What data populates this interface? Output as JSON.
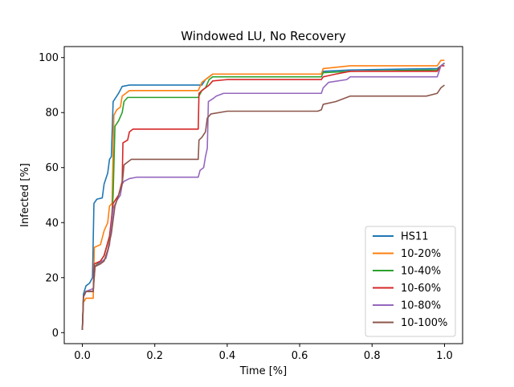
{
  "chart_data": {
    "type": "line",
    "title": "Windowed LU, No Recovery",
    "xlabel": "Time [%]",
    "ylabel": "Infected [%]",
    "xlim": [
      -0.05,
      1.05
    ],
    "ylim": [
      -4,
      104
    ],
    "xticks": [
      0.0,
      0.2,
      0.4,
      0.6,
      0.8,
      1.0
    ],
    "xtick_labels": [
      "0.0",
      "0.2",
      "0.4",
      "0.6",
      "0.8",
      "1.0"
    ],
    "yticks": [
      0,
      20,
      40,
      60,
      80,
      100
    ],
    "ytick_labels": [
      "0",
      "20",
      "40",
      "60",
      "80",
      "100"
    ],
    "grid": false,
    "legend_position": "bottom-right",
    "series": [
      {
        "name": "HS11",
        "color": "#1f77b4",
        "points": [
          [
            0.0,
            1
          ],
          [
            0.003,
            14
          ],
          [
            0.01,
            17
          ],
          [
            0.02,
            18
          ],
          [
            0.028,
            20
          ],
          [
            0.032,
            47
          ],
          [
            0.04,
            48.5
          ],
          [
            0.055,
            49
          ],
          [
            0.06,
            54
          ],
          [
            0.07,
            58
          ],
          [
            0.075,
            63
          ],
          [
            0.08,
            64
          ],
          [
            0.085,
            84
          ],
          [
            0.095,
            86
          ],
          [
            0.1,
            87
          ],
          [
            0.11,
            89.5
          ],
          [
            0.13,
            90
          ],
          [
            0.33,
            90
          ],
          [
            0.34,
            92
          ],
          [
            0.35,
            93
          ],
          [
            0.36,
            94
          ],
          [
            0.66,
            94
          ],
          [
            0.665,
            95
          ],
          [
            0.74,
            95.5
          ],
          [
            0.98,
            96
          ],
          [
            0.99,
            97
          ],
          [
            1.0,
            98
          ]
        ]
      },
      {
        "name": "10-20%",
        "color": "#ff7f0e",
        "points": [
          [
            0.0,
            1
          ],
          [
            0.003,
            11
          ],
          [
            0.01,
            12.5
          ],
          [
            0.03,
            12.5
          ],
          [
            0.033,
            31
          ],
          [
            0.05,
            32
          ],
          [
            0.06,
            37
          ],
          [
            0.07,
            40
          ],
          [
            0.075,
            46
          ],
          [
            0.082,
            47
          ],
          [
            0.087,
            79
          ],
          [
            0.095,
            81
          ],
          [
            0.105,
            82
          ],
          [
            0.11,
            86
          ],
          [
            0.12,
            87
          ],
          [
            0.13,
            88
          ],
          [
            0.32,
            88
          ],
          [
            0.33,
            91
          ],
          [
            0.35,
            93
          ],
          [
            0.36,
            94
          ],
          [
            0.66,
            94
          ],
          [
            0.665,
            96
          ],
          [
            0.74,
            97
          ],
          [
            0.98,
            97
          ],
          [
            0.99,
            99
          ],
          [
            1.0,
            99
          ]
        ]
      },
      {
        "name": "10-40%",
        "color": "#2ca02c",
        "points": [
          [
            0.0,
            1
          ],
          [
            0.003,
            13
          ],
          [
            0.01,
            15
          ],
          [
            0.03,
            15
          ],
          [
            0.033,
            24
          ],
          [
            0.05,
            26
          ],
          [
            0.06,
            28
          ],
          [
            0.075,
            35
          ],
          [
            0.08,
            40
          ],
          [
            0.085,
            50
          ],
          [
            0.09,
            75
          ],
          [
            0.1,
            77
          ],
          [
            0.11,
            80
          ],
          [
            0.115,
            84
          ],
          [
            0.125,
            85.5
          ],
          [
            0.32,
            85.5
          ],
          [
            0.33,
            88
          ],
          [
            0.34,
            89
          ],
          [
            0.35,
            92
          ],
          [
            0.36,
            93
          ],
          [
            0.66,
            93
          ],
          [
            0.665,
            94.5
          ],
          [
            0.74,
            95
          ],
          [
            0.98,
            95.5
          ],
          [
            0.99,
            97
          ],
          [
            1.0,
            98
          ]
        ]
      },
      {
        "name": "10-60%",
        "color": "#d62728",
        "points": [
          [
            0.0,
            1
          ],
          [
            0.003,
            13
          ],
          [
            0.01,
            15
          ],
          [
            0.03,
            15
          ],
          [
            0.033,
            25
          ],
          [
            0.05,
            26
          ],
          [
            0.06,
            28
          ],
          [
            0.075,
            35
          ],
          [
            0.085,
            47
          ],
          [
            0.1,
            50
          ],
          [
            0.11,
            55
          ],
          [
            0.112,
            69
          ],
          [
            0.125,
            70
          ],
          [
            0.13,
            73
          ],
          [
            0.14,
            74
          ],
          [
            0.32,
            74
          ],
          [
            0.322,
            87
          ],
          [
            0.33,
            88
          ],
          [
            0.34,
            89
          ],
          [
            0.35,
            90
          ],
          [
            0.36,
            91.5
          ],
          [
            0.4,
            92
          ],
          [
            0.66,
            92
          ],
          [
            0.665,
            93
          ],
          [
            0.7,
            94
          ],
          [
            0.74,
            95
          ],
          [
            0.98,
            95
          ],
          [
            0.99,
            97
          ],
          [
            1.0,
            97
          ]
        ]
      },
      {
        "name": "10-80%",
        "color": "#9467bd",
        "points": [
          [
            0.0,
            1
          ],
          [
            0.003,
            13
          ],
          [
            0.01,
            15
          ],
          [
            0.03,
            16
          ],
          [
            0.035,
            24
          ],
          [
            0.05,
            25.5
          ],
          [
            0.065,
            27
          ],
          [
            0.075,
            32
          ],
          [
            0.085,
            45
          ],
          [
            0.095,
            48
          ],
          [
            0.105,
            50
          ],
          [
            0.11,
            54
          ],
          [
            0.115,
            55
          ],
          [
            0.13,
            56
          ],
          [
            0.15,
            56.5
          ],
          [
            0.32,
            56.5
          ],
          [
            0.325,
            59
          ],
          [
            0.335,
            60
          ],
          [
            0.34,
            64
          ],
          [
            0.345,
            67
          ],
          [
            0.348,
            84
          ],
          [
            0.36,
            85
          ],
          [
            0.37,
            86
          ],
          [
            0.39,
            87
          ],
          [
            0.66,
            87
          ],
          [
            0.665,
            89
          ],
          [
            0.68,
            91
          ],
          [
            0.73,
            92
          ],
          [
            0.74,
            93
          ],
          [
            0.98,
            93
          ],
          [
            0.99,
            97
          ],
          [
            1.0,
            98
          ]
        ]
      },
      {
        "name": "10-100%",
        "color": "#8c564b",
        "points": [
          [
            0.0,
            1
          ],
          [
            0.003,
            13
          ],
          [
            0.01,
            15
          ],
          [
            0.03,
            15
          ],
          [
            0.035,
            24
          ],
          [
            0.05,
            25
          ],
          [
            0.06,
            26
          ],
          [
            0.07,
            30
          ],
          [
            0.08,
            36
          ],
          [
            0.09,
            46
          ],
          [
            0.1,
            50
          ],
          [
            0.11,
            54
          ],
          [
            0.115,
            61
          ],
          [
            0.125,
            62
          ],
          [
            0.135,
            63
          ],
          [
            0.32,
            63
          ],
          [
            0.322,
            70
          ],
          [
            0.33,
            71
          ],
          [
            0.34,
            73
          ],
          [
            0.345,
            78
          ],
          [
            0.355,
            79.5
          ],
          [
            0.4,
            80.5
          ],
          [
            0.65,
            80.5
          ],
          [
            0.66,
            81
          ],
          [
            0.665,
            83
          ],
          [
            0.7,
            84
          ],
          [
            0.74,
            86
          ],
          [
            0.95,
            86
          ],
          [
            0.98,
            87
          ],
          [
            0.99,
            89
          ],
          [
            1.0,
            90
          ]
        ]
      }
    ]
  }
}
